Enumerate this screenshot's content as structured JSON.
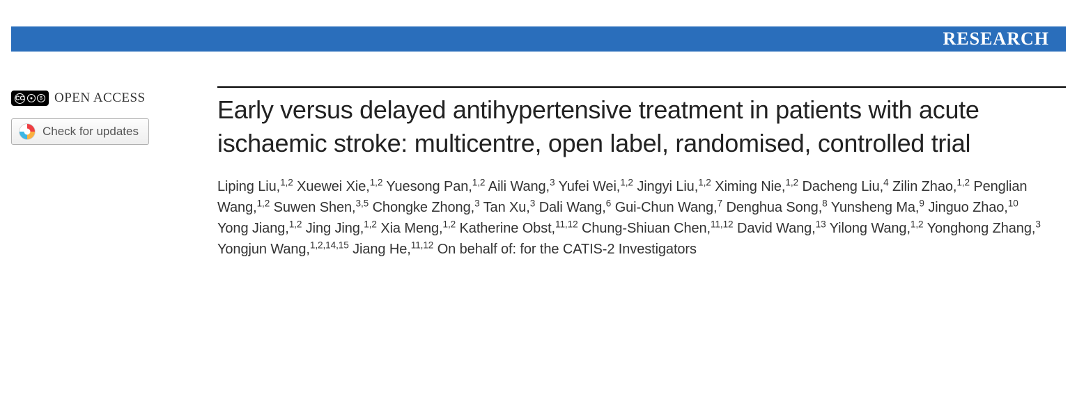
{
  "banner": {
    "label": "RESEARCH",
    "background_color": "#2a6ebb",
    "text_color": "#ffffff"
  },
  "sidebar": {
    "open_access_label": "OPEN ACCESS",
    "cc_license": "CC BY-NC",
    "check_updates_label": "Check for updates"
  },
  "article": {
    "title": "Early versus delayed antihypertensive treatment in patients with acute ischaemic stroke: multicentre, open label, randomised, controlled trial",
    "authors": [
      {
        "name": "Liping Liu",
        "affil": "1,2"
      },
      {
        "name": "Xuewei Xie",
        "affil": "1,2"
      },
      {
        "name": "Yuesong Pan",
        "affil": "1,2"
      },
      {
        "name": "Aili Wang",
        "affil": "3"
      },
      {
        "name": "Yufei Wei",
        "affil": "1,2"
      },
      {
        "name": "Jingyi Liu",
        "affil": "1,2"
      },
      {
        "name": "Ximing Nie",
        "affil": "1,2"
      },
      {
        "name": "Dacheng Liu",
        "affil": "4"
      },
      {
        "name": "Zilin Zhao",
        "affil": "1,2"
      },
      {
        "name": "Penglian Wang",
        "affil": "1,2"
      },
      {
        "name": "Suwen Shen",
        "affil": "3,5"
      },
      {
        "name": "Chongke Zhong",
        "affil": "3"
      },
      {
        "name": "Tan Xu",
        "affil": "3"
      },
      {
        "name": "Dali Wang",
        "affil": "6"
      },
      {
        "name": "Gui-Chun Wang",
        "affil": "7"
      },
      {
        "name": "Denghua Song",
        "affil": "8"
      },
      {
        "name": "Yunsheng Ma",
        "affil": "9"
      },
      {
        "name": "Jinguo Zhao",
        "affil": "10"
      },
      {
        "name": "Yong Jiang",
        "affil": "1,2"
      },
      {
        "name": "Jing Jing",
        "affil": "1,2"
      },
      {
        "name": "Xia Meng",
        "affil": "1,2"
      },
      {
        "name": "Katherine Obst",
        "affil": "11,12"
      },
      {
        "name": "Chung-Shiuan Chen",
        "affil": "11,12"
      },
      {
        "name": "David Wang",
        "affil": "13"
      },
      {
        "name": "Yilong Wang",
        "affil": "1,2"
      },
      {
        "name": "Yonghong Zhang",
        "affil": "3"
      },
      {
        "name": "Yongjun Wang",
        "affil": "1,2,14,15"
      },
      {
        "name": "Jiang He",
        "affil": "11,12"
      }
    ],
    "on_behalf": "On behalf of: for the CATIS-2 Investigators",
    "title_fontsize": 36,
    "title_color": "#222222",
    "authors_fontsize": 20,
    "authors_color": "#333333",
    "rule_color": "#000000"
  }
}
